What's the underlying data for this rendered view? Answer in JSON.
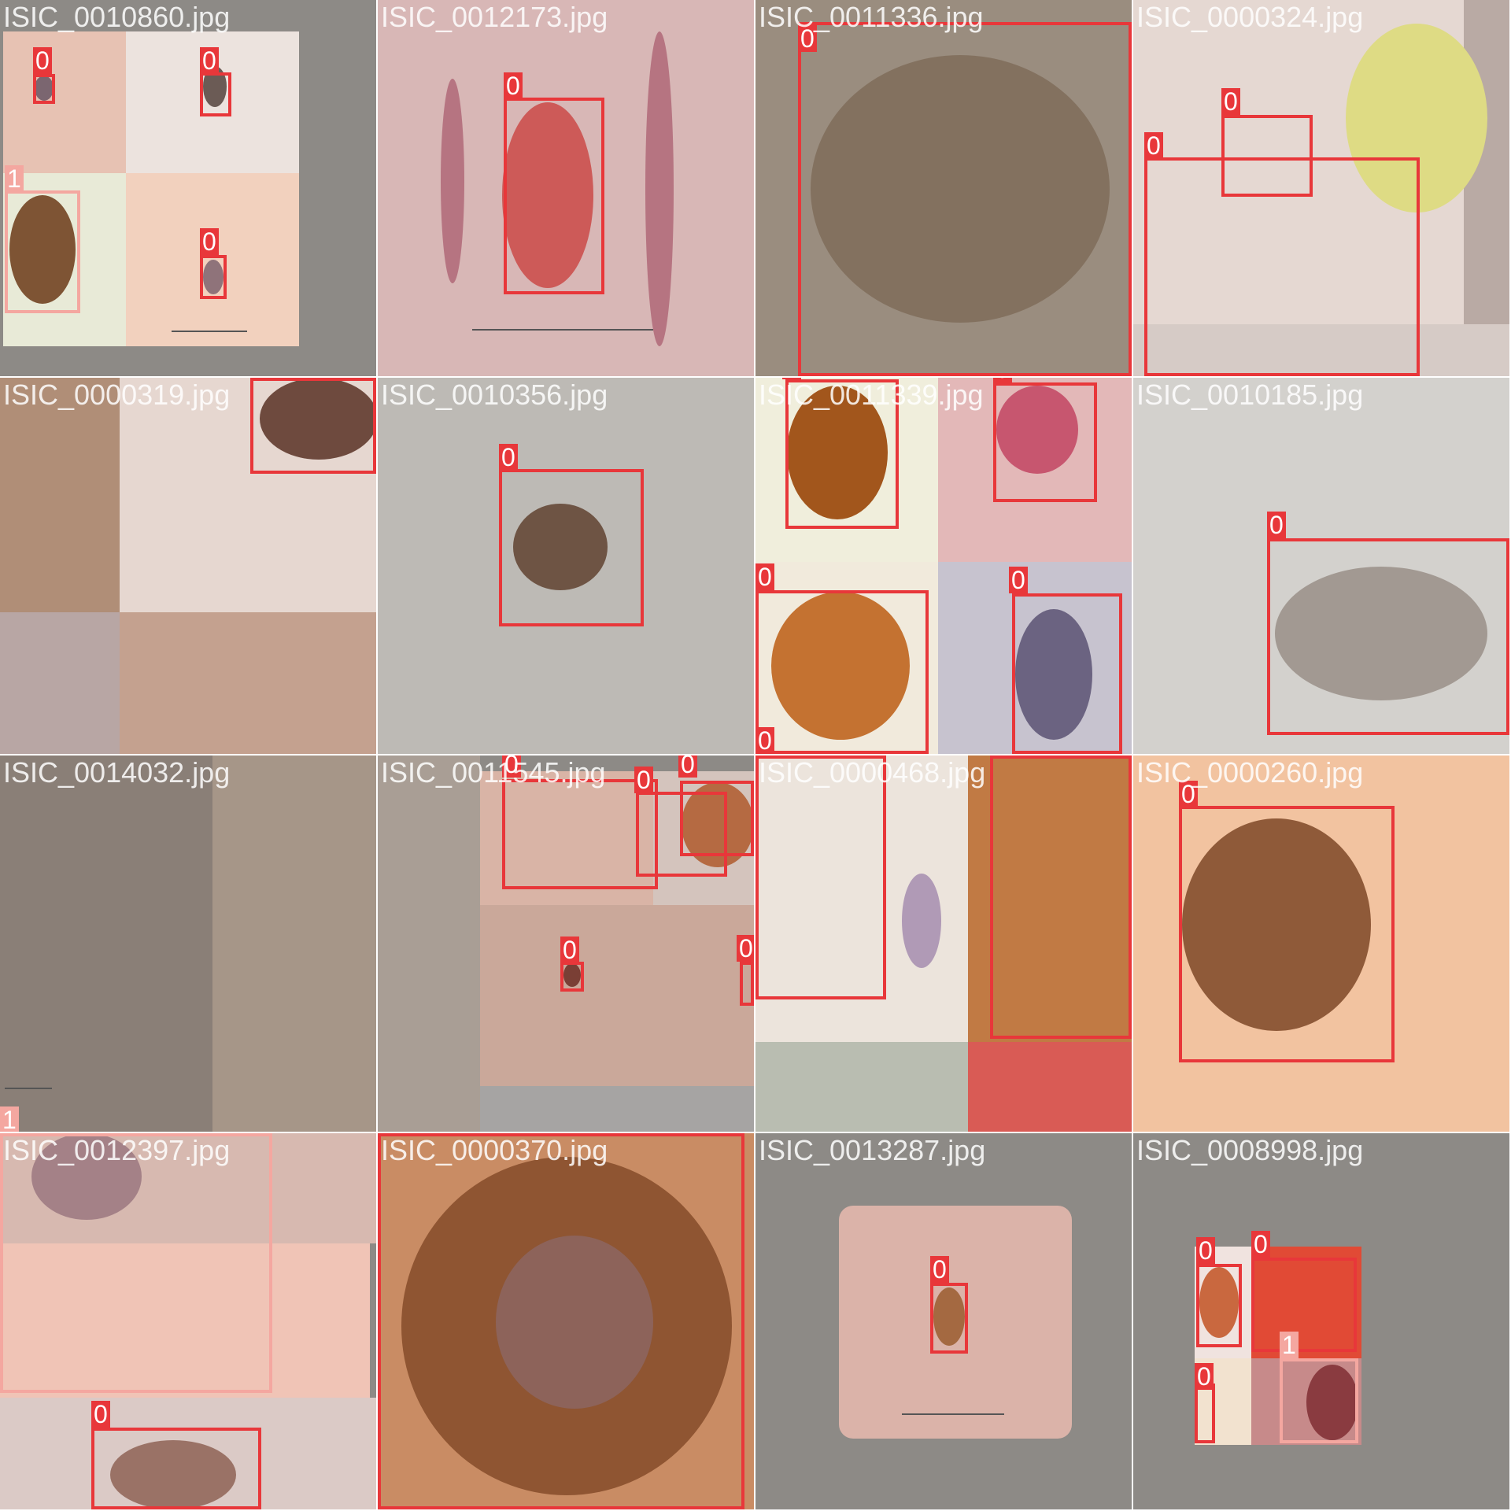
{
  "classes": {
    "0": "0",
    "1": "1"
  },
  "colors": {
    "class0": "#e8373a",
    "class1": "#f4a7a0",
    "gap": "#8d8a86"
  },
  "tiles": [
    {
      "filename": "ISIC_0010860.jpg",
      "boxes": [
        "0",
        "0",
        "1",
        "0"
      ]
    },
    {
      "filename": "ISIC_0012173.jpg",
      "boxes": [
        "0"
      ]
    },
    {
      "filename": "ISIC_0011336.jpg",
      "boxes": [
        "0"
      ]
    },
    {
      "filename": "ISIC_0000324.jpg",
      "boxes": [
        "0",
        "0"
      ]
    },
    {
      "filename": "ISIC_0000319.jpg",
      "boxes": [
        "0"
      ]
    },
    {
      "filename": "ISIC_0010356.jpg",
      "boxes": [
        "0"
      ]
    },
    {
      "filename": "ISIC_0011339.jpg",
      "boxes": [
        "0",
        "0",
        "0",
        "0",
        "0"
      ]
    },
    {
      "filename": "ISIC_0010185.jpg",
      "boxes": [
        "0"
      ]
    },
    {
      "filename": "ISIC_0014032.jpg",
      "boxes": [
        "1"
      ]
    },
    {
      "filename": "ISIC_0011545.jpg",
      "boxes": [
        "0",
        "0",
        "0",
        "0",
        "0",
        "0"
      ]
    },
    {
      "filename": "ISIC_0000468.jpg",
      "boxes": [
        "0"
      ]
    },
    {
      "filename": "ISIC_0000260.jpg",
      "boxes": [
        "0"
      ]
    },
    {
      "filename": "ISIC_0012397.jpg",
      "boxes": [
        "1",
        "0"
      ]
    },
    {
      "filename": "ISIC_0000370.jpg",
      "boxes": [
        "0"
      ]
    },
    {
      "filename": "ISIC_0013287.jpg",
      "boxes": [
        "0"
      ]
    },
    {
      "filename": "ISIC_0008998.jpg",
      "boxes": [
        "0",
        "0",
        "1",
        "0"
      ]
    }
  ]
}
